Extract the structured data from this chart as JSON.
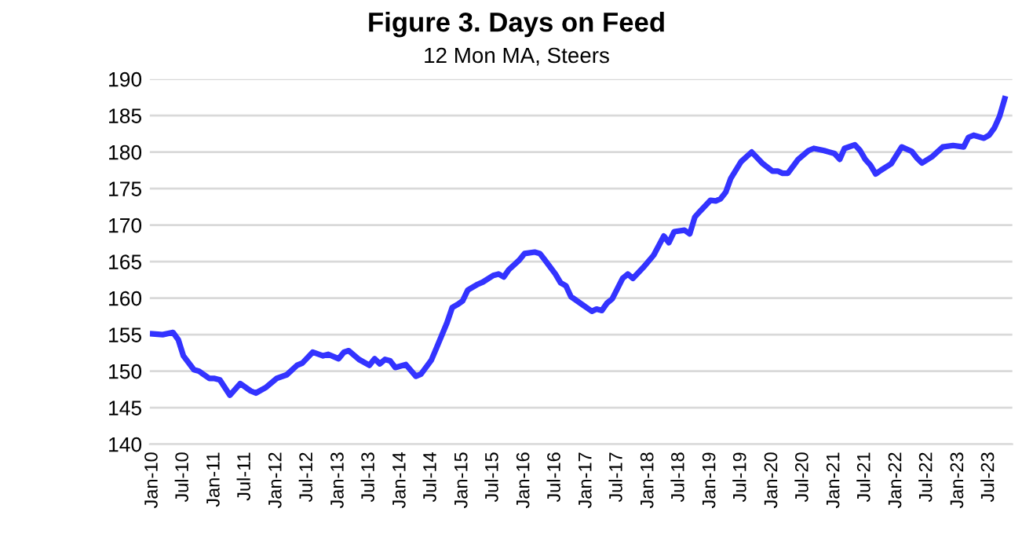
{
  "chart_data": {
    "type": "line",
    "title": "Figure 3. Days on Feed",
    "subtitle": "12 Mon MA, Steers",
    "series": [
      {
        "color": "#3333ff",
        "x": [
          "2010-01",
          "2010-03",
          "2010-05",
          "2010-06",
          "2010-07",
          "2010-09",
          "2010-10",
          "2010-12",
          "2011-01",
          "2011-02",
          "2011-03",
          "2011-04",
          "2011-06",
          "2011-08",
          "2011-09",
          "2011-11",
          "2012-01",
          "2012-03",
          "2012-05",
          "2012-06",
          "2012-08",
          "2012-10",
          "2012-11",
          "2013-01",
          "2013-02",
          "2013-03",
          "2013-05",
          "2013-07",
          "2013-08",
          "2013-09",
          "2013-10",
          "2013-11",
          "2013-12",
          "2014-02",
          "2014-04",
          "2014-05",
          "2014-07",
          "2014-08",
          "2014-10",
          "2014-11",
          "2014-12",
          "2015-01",
          "2015-02",
          "2015-04",
          "2015-05",
          "2015-07",
          "2015-08",
          "2015-09",
          "2015-10",
          "2015-12",
          "2016-01",
          "2016-03",
          "2016-04",
          "2016-05",
          "2016-07",
          "2016-08",
          "2016-09",
          "2016-10",
          "2016-12",
          "2017-02",
          "2017-03",
          "2017-04",
          "2017-05",
          "2017-06",
          "2017-08",
          "2017-09",
          "2017-10",
          "2017-12",
          "2018-02",
          "2018-04",
          "2018-05",
          "2018-06",
          "2018-08",
          "2018-09",
          "2018-10",
          "2018-11",
          "2019-01",
          "2019-02",
          "2019-03",
          "2019-04",
          "2019-05",
          "2019-07",
          "2019-09",
          "2019-11",
          "2020-01",
          "2020-02",
          "2020-03",
          "2020-04",
          "2020-06",
          "2020-08",
          "2020-09",
          "2020-11",
          "2020-12",
          "2021-01",
          "2021-02",
          "2021-03",
          "2021-05",
          "2021-06",
          "2021-07",
          "2021-08",
          "2021-09",
          "2021-10",
          "2021-12",
          "2022-02",
          "2022-04",
          "2022-05",
          "2022-06",
          "2022-08",
          "2022-10",
          "2022-12",
          "2023-02",
          "2023-03",
          "2023-04",
          "2023-06",
          "2023-07",
          "2023-08",
          "2023-09",
          "2023-10"
        ],
        "values": [
          155.1,
          155.0,
          155.3,
          154.3,
          152.1,
          150.2,
          150.0,
          149.0,
          149.0,
          148.8,
          147.8,
          146.7,
          148.3,
          147.3,
          147.0,
          147.8,
          149.0,
          149.5,
          150.8,
          151.1,
          152.6,
          152.1,
          152.3,
          151.7,
          152.6,
          152.8,
          151.6,
          150.8,
          151.7,
          151.0,
          151.6,
          151.4,
          150.5,
          150.9,
          149.3,
          149.6,
          151.5,
          153.2,
          156.6,
          158.7,
          159.1,
          159.6,
          161.1,
          161.9,
          162.2,
          163.1,
          163.3,
          162.9,
          163.9,
          165.2,
          166.1,
          166.3,
          166.1,
          165.2,
          163.3,
          162.1,
          161.7,
          160.2,
          159.2,
          158.2,
          158.5,
          158.3,
          159.3,
          159.9,
          162.7,
          163.3,
          162.7,
          164.2,
          165.9,
          168.5,
          167.6,
          169.1,
          169.3,
          168.8,
          171.1,
          171.9,
          173.4,
          173.3,
          173.6,
          174.5,
          176.4,
          178.7,
          180.0,
          178.5,
          177.4,
          177.4,
          177.1,
          177.1,
          179.0,
          180.2,
          180.5,
          180.2,
          180.0,
          179.8,
          179.0,
          180.5,
          181.0,
          180.2,
          179.0,
          178.2,
          177.0,
          177.5,
          178.4,
          180.7,
          180.1,
          179.2,
          178.5,
          179.4,
          180.7,
          180.9,
          180.7,
          182.0,
          182.3,
          181.9,
          182.3,
          183.3,
          184.9,
          187.3
        ]
      }
    ],
    "xlim": [
      "2009-12-15",
      "2023-11-15"
    ],
    "xticks": [
      {
        "value": "2010-01",
        "label": "Jan-10"
      },
      {
        "value": "2010-07",
        "label": "Jul-10"
      },
      {
        "value": "2011-01",
        "label": "Jan-11"
      },
      {
        "value": "2011-07",
        "label": "Jul-11"
      },
      {
        "value": "2012-01",
        "label": "Jan-12"
      },
      {
        "value": "2012-07",
        "label": "Jul-12"
      },
      {
        "value": "2013-01",
        "label": "Jan-13"
      },
      {
        "value": "2013-07",
        "label": "Jul-13"
      },
      {
        "value": "2014-01",
        "label": "Jan-14"
      },
      {
        "value": "2014-07",
        "label": "Jul-14"
      },
      {
        "value": "2015-01",
        "label": "Jan-15"
      },
      {
        "value": "2015-07",
        "label": "Jul-15"
      },
      {
        "value": "2016-01",
        "label": "Jan-16"
      },
      {
        "value": "2016-07",
        "label": "Jul-16"
      },
      {
        "value": "2017-01",
        "label": "Jan-17"
      },
      {
        "value": "2017-07",
        "label": "Jul-17"
      },
      {
        "value": "2018-01",
        "label": "Jan-18"
      },
      {
        "value": "2018-07",
        "label": "Jul-18"
      },
      {
        "value": "2019-01",
        "label": "Jan-19"
      },
      {
        "value": "2019-07",
        "label": "Jul-19"
      },
      {
        "value": "2020-01",
        "label": "Jan-20"
      },
      {
        "value": "2020-07",
        "label": "Jul-20"
      },
      {
        "value": "2021-01",
        "label": "Jan-21"
      },
      {
        "value": "2021-07",
        "label": "Jul-21"
      },
      {
        "value": "2022-01",
        "label": "Jan-22"
      },
      {
        "value": "2022-07",
        "label": "Jul-22"
      },
      {
        "value": "2023-01",
        "label": "Jan-23"
      },
      {
        "value": "2023-07",
        "label": "Jul-23"
      }
    ],
    "ylim": [
      140,
      190
    ],
    "yticks": [
      140,
      145,
      150,
      155,
      160,
      165,
      170,
      175,
      180,
      185,
      190
    ],
    "grid": "y",
    "legend": false,
    "marker": "none",
    "line_style": "solid"
  }
}
